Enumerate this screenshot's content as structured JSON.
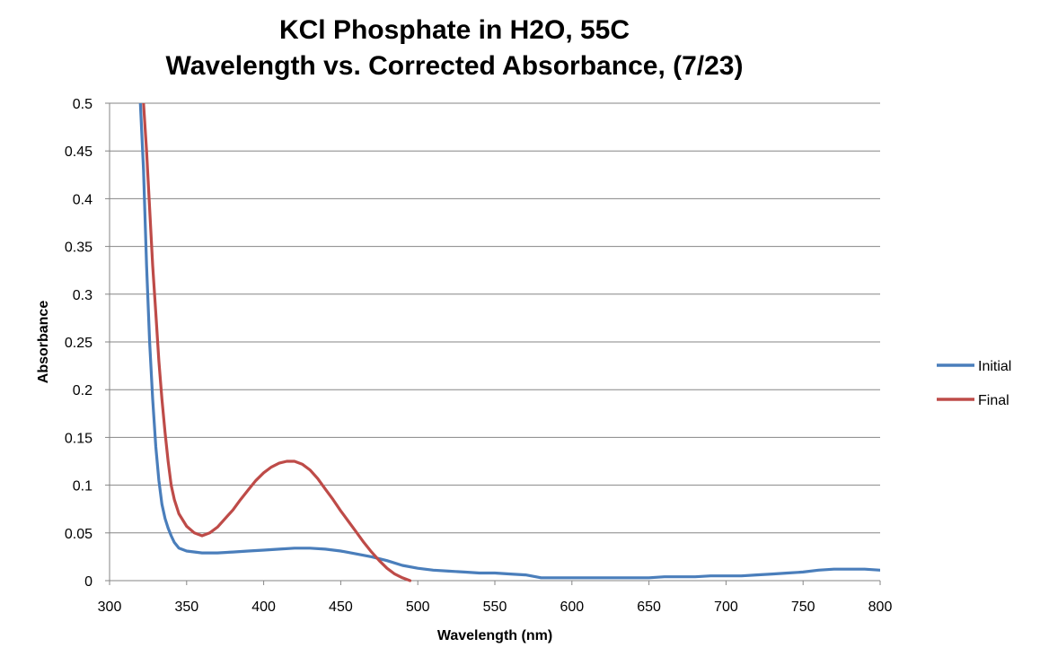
{
  "chart_data": {
    "type": "line",
    "title": [
      "KCl Phosphate in H2O, 55C",
      "Wavelength vs. Corrected Absorbance, (7/23)"
    ],
    "xlabel": "Wavelength (nm)",
    "ylabel": "Absorbance",
    "xlim": [
      300,
      800
    ],
    "ylim": [
      0,
      0.5
    ],
    "x_ticks": [
      300,
      350,
      400,
      450,
      500,
      550,
      600,
      650,
      700,
      750,
      800
    ],
    "y_ticks": [
      0,
      0.05,
      0.1,
      0.15,
      0.2,
      0.25,
      0.3,
      0.35,
      0.4,
      0.45,
      0.5
    ],
    "y_tick_labels": [
      "0",
      "0.05",
      "0.1",
      "0.15",
      "0.2",
      "0.25",
      "0.3",
      "0.35",
      "0.4",
      "0.45",
      "0.5"
    ],
    "grid": "horizontal",
    "legend_position": "right",
    "series": [
      {
        "name": "Initial",
        "color": "#4a7ebb",
        "x": [
          320,
          322,
          324,
          326,
          328,
          330,
          332,
          334,
          336,
          338,
          340,
          342,
          345,
          350,
          360,
          370,
          380,
          390,
          400,
          410,
          420,
          430,
          440,
          450,
          460,
          470,
          480,
          490,
          500,
          510,
          520,
          530,
          540,
          550,
          560,
          570,
          580,
          590,
          600,
          610,
          620,
          630,
          640,
          650,
          660,
          670,
          680,
          690,
          700,
          710,
          720,
          730,
          740,
          750,
          760,
          770,
          780,
          790,
          800
        ],
        "y": [
          0.5,
          0.43,
          0.33,
          0.25,
          0.19,
          0.14,
          0.105,
          0.08,
          0.065,
          0.055,
          0.047,
          0.04,
          0.034,
          0.031,
          0.029,
          0.029,
          0.03,
          0.031,
          0.032,
          0.033,
          0.034,
          0.034,
          0.033,
          0.031,
          0.028,
          0.025,
          0.021,
          0.016,
          0.013,
          0.011,
          0.01,
          0.009,
          0.008,
          0.008,
          0.007,
          0.006,
          0.003,
          0.003,
          0.003,
          0.003,
          0.003,
          0.003,
          0.003,
          0.003,
          0.004,
          0.004,
          0.004,
          0.005,
          0.005,
          0.005,
          0.006,
          0.007,
          0.008,
          0.009,
          0.011,
          0.012,
          0.012,
          0.012,
          0.011
        ]
      },
      {
        "name": "Final",
        "color": "#be4b48",
        "x": [
          322,
          324,
          326,
          328,
          330,
          332,
          334,
          336,
          338,
          340,
          342,
          345,
          350,
          355,
          360,
          365,
          370,
          375,
          380,
          385,
          390,
          395,
          400,
          405,
          410,
          415,
          420,
          425,
          430,
          435,
          440,
          445,
          450,
          455,
          460,
          465,
          470,
          475,
          480,
          485,
          490,
          495
        ],
        "y": [
          0.5,
          0.45,
          0.39,
          0.33,
          0.28,
          0.23,
          0.19,
          0.155,
          0.125,
          0.1,
          0.085,
          0.07,
          0.057,
          0.05,
          0.047,
          0.05,
          0.056,
          0.065,
          0.074,
          0.085,
          0.095,
          0.105,
          0.113,
          0.119,
          0.123,
          0.125,
          0.125,
          0.122,
          0.116,
          0.107,
          0.096,
          0.085,
          0.073,
          0.062,
          0.051,
          0.04,
          0.03,
          0.021,
          0.013,
          0.007,
          0.003,
          0.0
        ]
      }
    ]
  }
}
